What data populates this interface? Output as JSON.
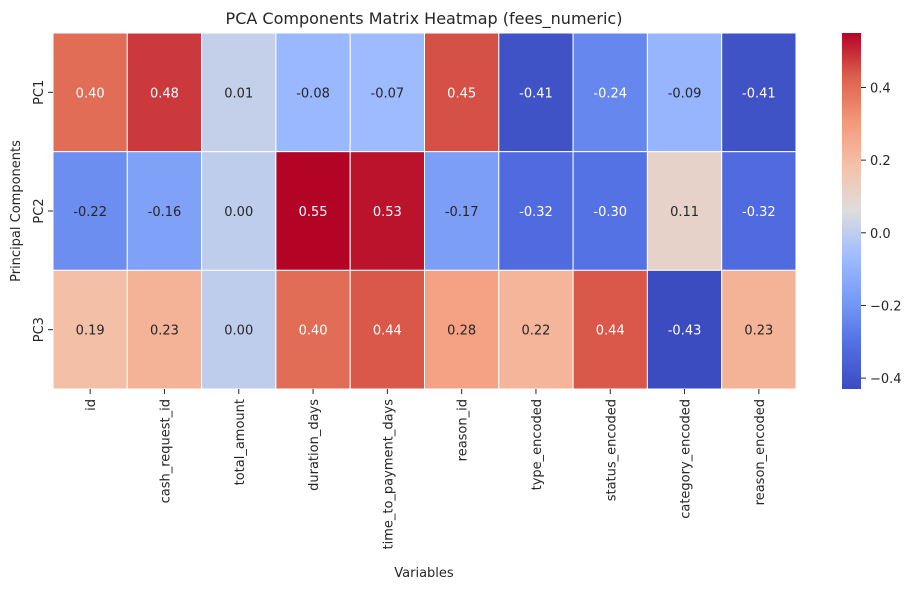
{
  "chart_data": {
    "type": "heatmap",
    "title": "PCA Components Matrix Heatmap (fees_numeric)",
    "xlabel": "Variables",
    "ylabel": "Principal Components",
    "x": [
      "id",
      "cash_request_id",
      "total_amount",
      "duration_days",
      "time_to_payment_days",
      "reason_id",
      "type_encoded",
      "status_encoded",
      "category_encoded",
      "reason_encoded"
    ],
    "y": [
      "PC1",
      "PC2",
      "PC3"
    ],
    "values": [
      [
        0.4,
        0.48,
        0.01,
        -0.08,
        -0.07,
        0.45,
        -0.41,
        -0.24,
        -0.09,
        -0.41
      ],
      [
        -0.22,
        -0.16,
        0.0,
        0.55,
        0.53,
        -0.17,
        -0.32,
        -0.3,
        0.11,
        -0.32
      ],
      [
        0.19,
        0.23,
        0.0,
        0.4,
        0.44,
        0.28,
        0.22,
        0.44,
        -0.43,
        0.23
      ]
    ],
    "value_range": [
      -0.43,
      0.55
    ],
    "colormap": "coolwarm",
    "colorbar_ticks": [
      0.4,
      0.2,
      0.0,
      -0.2,
      -0.4
    ],
    "colorbar_tick_labels": [
      "0.4",
      "0.2",
      "0.0",
      "−0.2",
      "−0.4"
    ],
    "annotation_format": "0.00",
    "grid": false,
    "cell_border_color": "#ffffff",
    "legend_placement": "right"
  }
}
